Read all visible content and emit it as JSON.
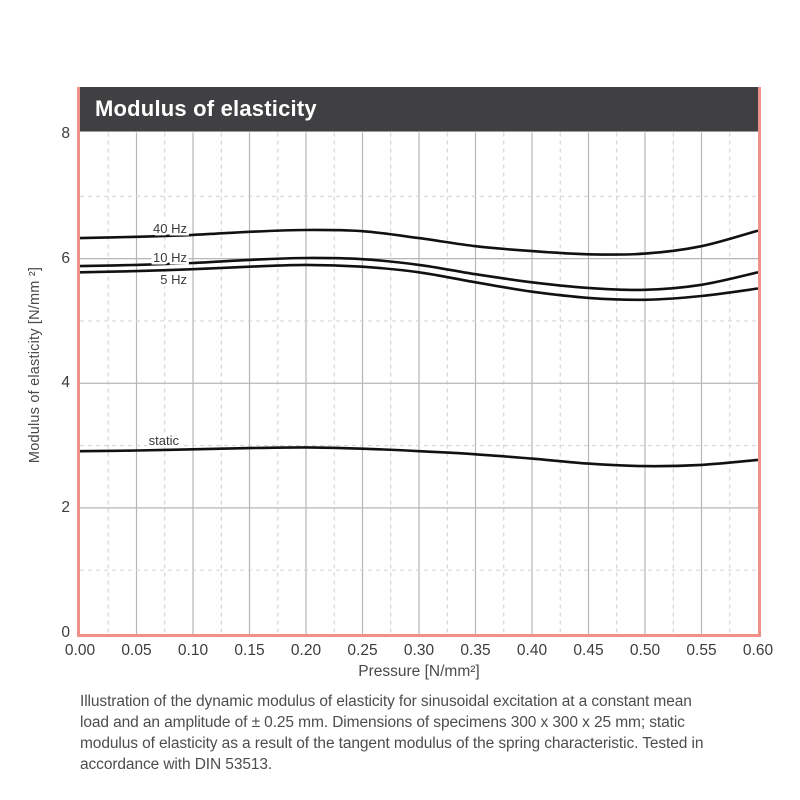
{
  "title": "Modulus of elasticity",
  "y_axis": {
    "label": "Modulus of elasticity  [N/mm ²]",
    "ticks": [
      0,
      2,
      4,
      6,
      8
    ]
  },
  "x_axis": {
    "label": "Pressure [N/mm²]",
    "ticks": [
      "0.00",
      "0.05",
      "0.10",
      "0.15",
      "0.20",
      "0.25",
      "0.30",
      "0.35",
      "0.40",
      "0.45",
      "0.50",
      "0.55",
      "0.60"
    ]
  },
  "caption_lines": [
    "Illustration of the dynamic modulus of elasticity for sinusoidal excitation at a constant mean",
    "load and an amplitude of ± 0.25 mm. Dimensions of specimens 300 x 300 x 25 mm; static",
    "modulus of elasticity as a result of the tangent modulus of the spring characteristic. Tested in",
    "accordance with DIN 53513."
  ],
  "colors": {
    "frame": "#f0908a",
    "title_bar": "#404043",
    "title_text": "#ffffff",
    "curve": "#111111",
    "grid_solid": "#b6b6b6",
    "grid_dashed": "#d5d5d5",
    "tick_text": "#3c3c3c",
    "caption_text": "#4d4d4d"
  },
  "chart_data": {
    "type": "line",
    "title": "Modulus of elasticity",
    "xlabel": "Pressure [N/mm²]",
    "ylabel": "Modulus of elasticity [N/mm²]",
    "xlim": [
      0,
      0.6
    ],
    "ylim": [
      0,
      8
    ],
    "x": [
      0,
      0.05,
      0.1,
      0.15,
      0.2,
      0.25,
      0.3,
      0.35,
      0.4,
      0.45,
      0.5,
      0.55,
      0.6
    ],
    "series": [
      {
        "name": "40 Hz",
        "values": [
          6.33,
          6.35,
          6.38,
          6.43,
          6.46,
          6.44,
          6.33,
          6.2,
          6.12,
          6.07,
          6.08,
          6.2,
          6.45
        ]
      },
      {
        "name": "10 Hz",
        "values": [
          5.88,
          5.9,
          5.93,
          5.98,
          6.01,
          5.99,
          5.9,
          5.75,
          5.62,
          5.53,
          5.5,
          5.58,
          5.78
        ]
      },
      {
        "name": "5 Hz",
        "values": [
          5.78,
          5.8,
          5.83,
          5.87,
          5.9,
          5.87,
          5.78,
          5.62,
          5.47,
          5.37,
          5.34,
          5.4,
          5.52
        ]
      },
      {
        "name": "static",
        "values": [
          2.91,
          2.92,
          2.94,
          2.96,
          2.97,
          2.95,
          2.91,
          2.86,
          2.79,
          2.71,
          2.67,
          2.69,
          2.77
        ]
      }
    ],
    "grid": {
      "x_solid_step": 0.05,
      "x_dashed_step": 0.025,
      "y_solid_values": [
        2,
        4,
        6
      ],
      "y_dashed_values": [
        1,
        3,
        5,
        7
      ]
    },
    "legend": "inline-labels"
  }
}
